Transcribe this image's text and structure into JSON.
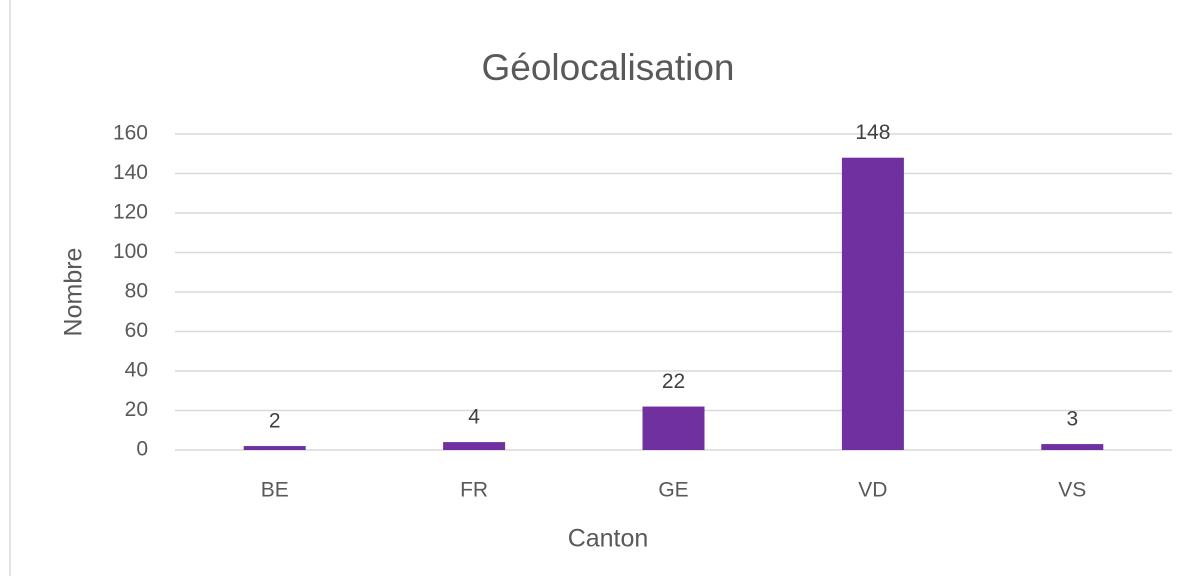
{
  "chart_data": {
    "type": "bar",
    "title": "Géolocalisation",
    "x_label": "Canton",
    "y_label": "Nombre",
    "categories": [
      "BE",
      "FR",
      "GE",
      "VD",
      "VS"
    ],
    "values": [
      2,
      4,
      22,
      148,
      3
    ],
    "color": "#7030a0",
    "ylim": [
      0,
      160
    ],
    "yticks": [
      0,
      20,
      40,
      60,
      80,
      100,
      120,
      140,
      160
    ],
    "grid": true,
    "data_labels": true
  }
}
